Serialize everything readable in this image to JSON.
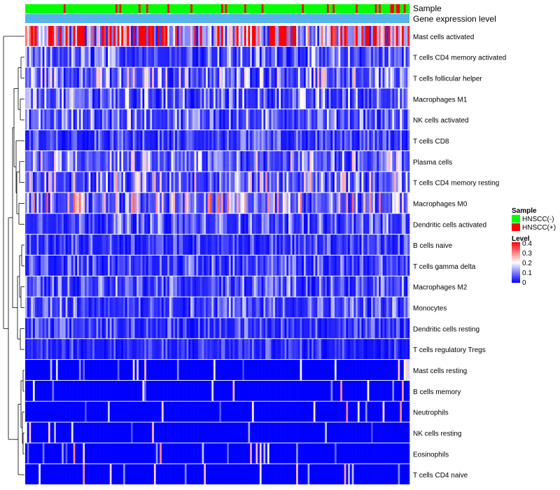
{
  "chart_data": {
    "type": "heatmap",
    "title": "",
    "annotation_tracks": [
      {
        "name": "Sample",
        "label": "Sample"
      },
      {
        "name": "Gene expression level",
        "label": "Gene expression level"
      }
    ],
    "rows": [
      "Mast cells activated",
      "T cells CD4 memory activated",
      "T cells follicular helper",
      "Macrophages M1",
      "NK cells activated",
      "T cells CD8",
      "Plasma cells",
      "T cells CD4 memory resting",
      "Macrophages M0",
      "Dendritic cells activated",
      "B cells naive",
      "T cells gamma delta",
      "Macrophages M2",
      "Monocytes",
      "Dendritic cells resting",
      "T cells regulatory  Tregs",
      "Mast cells resting",
      "B cells memory",
      "Neutrophils",
      "NK cells resting",
      "Eosinophils",
      "T cells CD4 naive"
    ],
    "row_mean_levels": [
      0.33,
      0.09,
      0.12,
      0.1,
      0.1,
      0.06,
      0.12,
      0.13,
      0.15,
      0.08,
      0.06,
      0.07,
      0.08,
      0.08,
      0.06,
      0.05,
      0.02,
      0.02,
      0.03,
      0.02,
      0.02,
      0.03
    ],
    "n_samples": 200,
    "sample_group_levels": [
      "HNSCC(-)",
      "HNSCC(+)"
    ],
    "sample_group_share_positive": 0.12,
    "expression_track_color": "#56B4E9",
    "color_scale": {
      "name": "Level",
      "min": 0,
      "max": 0.4,
      "ticks": [
        "0.4",
        "0.3",
        "0.2",
        "0.1",
        "0"
      ],
      "low_color": "#0000FF",
      "mid_color": "#FFFFFF",
      "high_color": "#FF0000",
      "mid_value": 0.2
    },
    "legend": {
      "placement": "right",
      "sample_title": "Sample",
      "sample_entries": [
        {
          "label": "HNSCC(-)",
          "color": "#00FF00"
        },
        {
          "label": "HNSCC(+)",
          "color": "#FF0000"
        }
      ],
      "level_title": "Level"
    },
    "row_dendrogram": true
  }
}
